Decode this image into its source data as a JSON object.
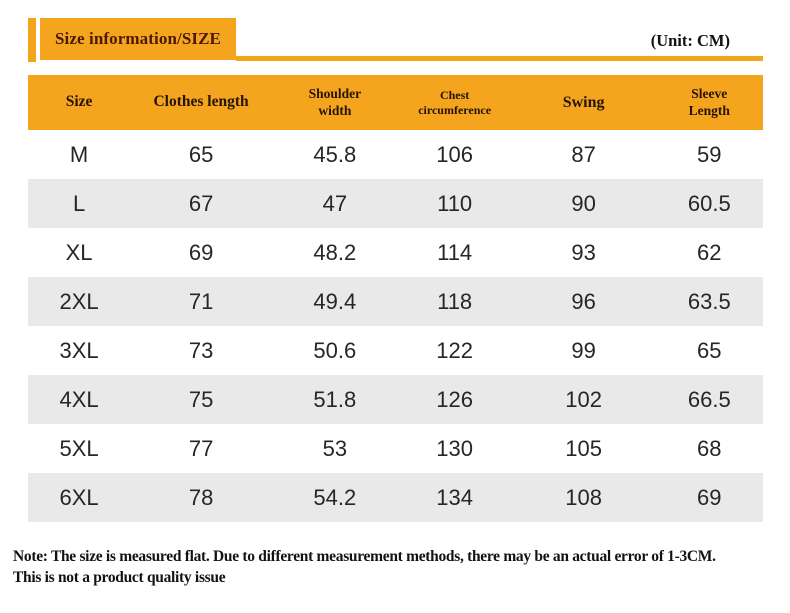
{
  "page": {
    "badge_label": "Size information/SIZE",
    "unit_label": "(Unit: CM)"
  },
  "chart_data": {
    "type": "table",
    "title": "Size information/SIZE",
    "unit": "CM",
    "columns": [
      "Size",
      "Clothes length",
      "Shoulder\nwidth",
      "Chest\ncircumference",
      "Swing",
      "Sleeve\nLength"
    ],
    "rows": [
      [
        "M",
        "65",
        "45.8",
        "106",
        "87",
        "59"
      ],
      [
        "L",
        "67",
        "47",
        "110",
        "90",
        "60.5"
      ],
      [
        "XL",
        "69",
        "48.2",
        "114",
        "93",
        "62"
      ],
      [
        "2XL",
        "71",
        "49.4",
        "118",
        "96",
        "63.5"
      ],
      [
        "3XL",
        "73",
        "50.6",
        "122",
        "99",
        "65"
      ],
      [
        "4XL",
        "75",
        "51.8",
        "126",
        "102",
        "66.5"
      ],
      [
        "5XL",
        "77",
        "53",
        "130",
        "105",
        "68"
      ],
      [
        "6XL",
        "78",
        "54.2",
        "134",
        "108",
        "69"
      ]
    ]
  },
  "note": {
    "text": "Note: The size is measured flat. Due to different measurement methods, there may be an actual error of 1-3CM.\nThis is not a product quality issue"
  },
  "colors": {
    "accent_orange": "#F5A41D",
    "badge_text": "#4B1A03",
    "header_text": "#241504",
    "alt_row": "#E9E9E9",
    "data_text": "#262626"
  }
}
